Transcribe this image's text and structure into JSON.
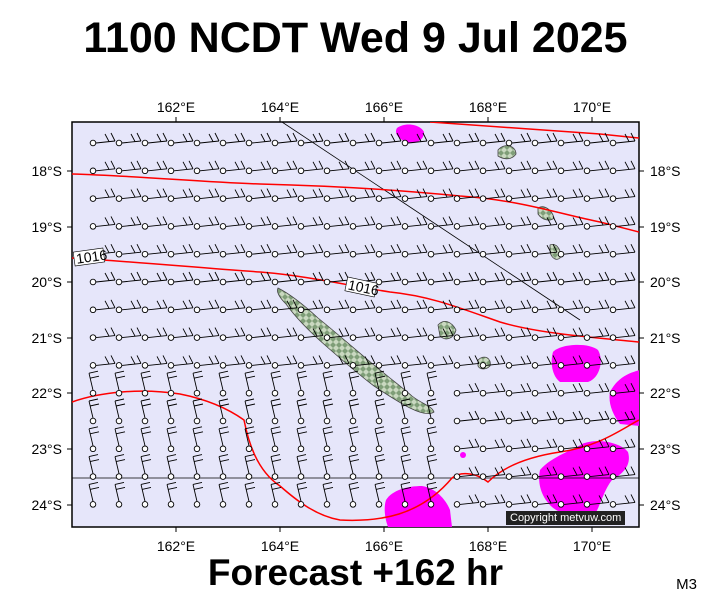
{
  "title": "1100 NCDT Wed 9 Jul 2025",
  "footer": "Forecast +162 hr",
  "model_label": "M3",
  "copyright": "Copyright metvuw.com",
  "axes": {
    "lon_ticks": [
      "162°E",
      "164°E",
      "166°E",
      "168°E",
      "170°E"
    ],
    "lat_ticks": [
      "18°S",
      "19°S",
      "20°S",
      "21°S",
      "22°S",
      "23°S",
      "24°S"
    ]
  },
  "isobar_labels": [
    "1016",
    "1016"
  ],
  "colors": {
    "ocean": "#e6e6fa",
    "isobar": "#ff0000",
    "rain": "#ff00ff",
    "land": "#b9c9b0"
  }
}
